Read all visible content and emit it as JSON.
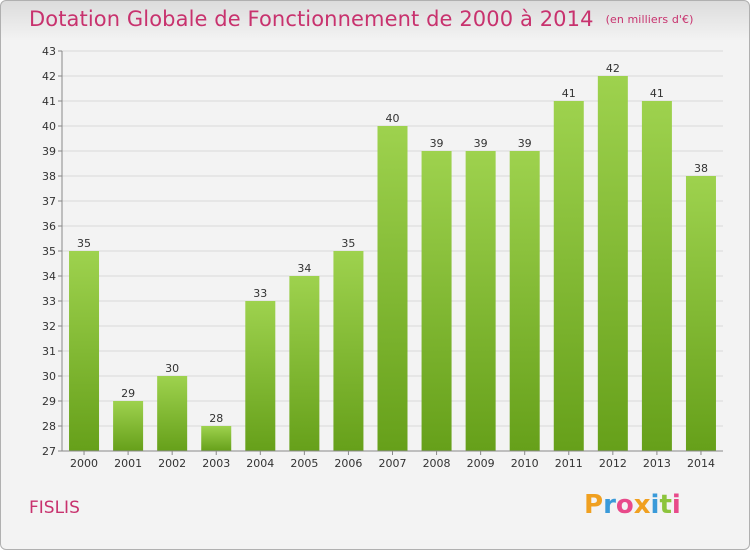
{
  "header": {
    "title": "Dotation Globale de Fonctionnement de 2000 à 2014",
    "unit": "(en milliers d'€)"
  },
  "footer": {
    "town": "FISLIS",
    "logo_letters": [
      "P",
      "r",
      "o",
      "x",
      "i",
      "t",
      "i"
    ],
    "logo_colors": [
      "#f0a020",
      "#3a9ad9",
      "#e84a8a",
      "#f0a020",
      "#3a9ad9",
      "#8cc43c",
      "#e84a8a"
    ]
  },
  "chart_data": {
    "type": "bar",
    "categories": [
      "2000",
      "2001",
      "2002",
      "2003",
      "2004",
      "2005",
      "2006",
      "2007",
      "2008",
      "2009",
      "2010",
      "2011",
      "2012",
      "2013",
      "2014"
    ],
    "values": [
      35,
      29,
      30,
      28,
      33,
      34,
      35,
      40,
      39,
      39,
      39,
      41,
      42,
      41,
      38
    ],
    "title": "Dotation Globale de Fonctionnement de 2000 à 2014",
    "ylim": [
      27,
      43
    ],
    "yticks": [
      27,
      28,
      29,
      30,
      31,
      32,
      33,
      34,
      35,
      36,
      37,
      38,
      39,
      40,
      41,
      42,
      43
    ],
    "grid": true,
    "colors": {
      "bar_top": "#9ed24e",
      "bar_bottom": "#66a01a",
      "grid": "#d8d8d8",
      "axis": "#888888"
    }
  }
}
